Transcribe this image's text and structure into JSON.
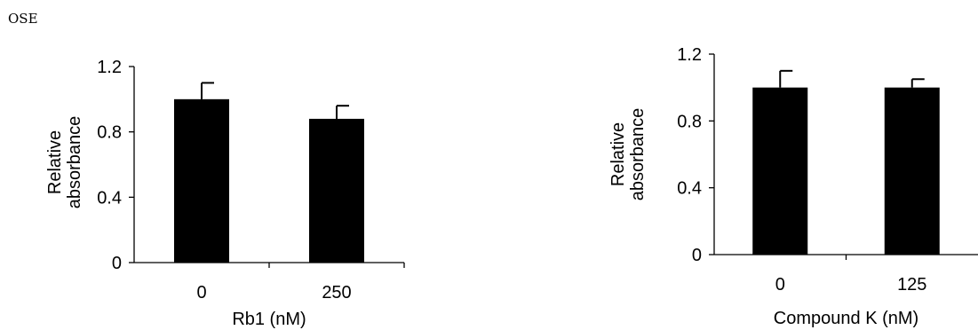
{
  "panel_label": "OSE",
  "chart_data": [
    {
      "type": "bar",
      "categories": [
        "0",
        "250"
      ],
      "values": [
        1.0,
        0.88
      ],
      "errors": [
        0.1,
        0.08
      ],
      "xlabel": "Rb1 (nM)",
      "ylabel": [
        "Relative",
        "absorbance"
      ],
      "yticks": [
        "0",
        "0.4",
        "0.8",
        "1.2"
      ],
      "ylim": [
        0,
        1.2
      ],
      "bar_color": "#000000",
      "grid": false
    },
    {
      "type": "bar",
      "categories": [
        "0",
        "125"
      ],
      "values": [
        1.0,
        1.0
      ],
      "errors": [
        0.1,
        0.05
      ],
      "xlabel": "Compound K (nM)",
      "ylabel": [
        "Relative",
        "absorbance"
      ],
      "yticks": [
        "0",
        "0.4",
        "0.8",
        "1.2"
      ],
      "ylim": [
        0,
        1.2
      ],
      "bar_color": "#000000",
      "grid": false
    }
  ]
}
